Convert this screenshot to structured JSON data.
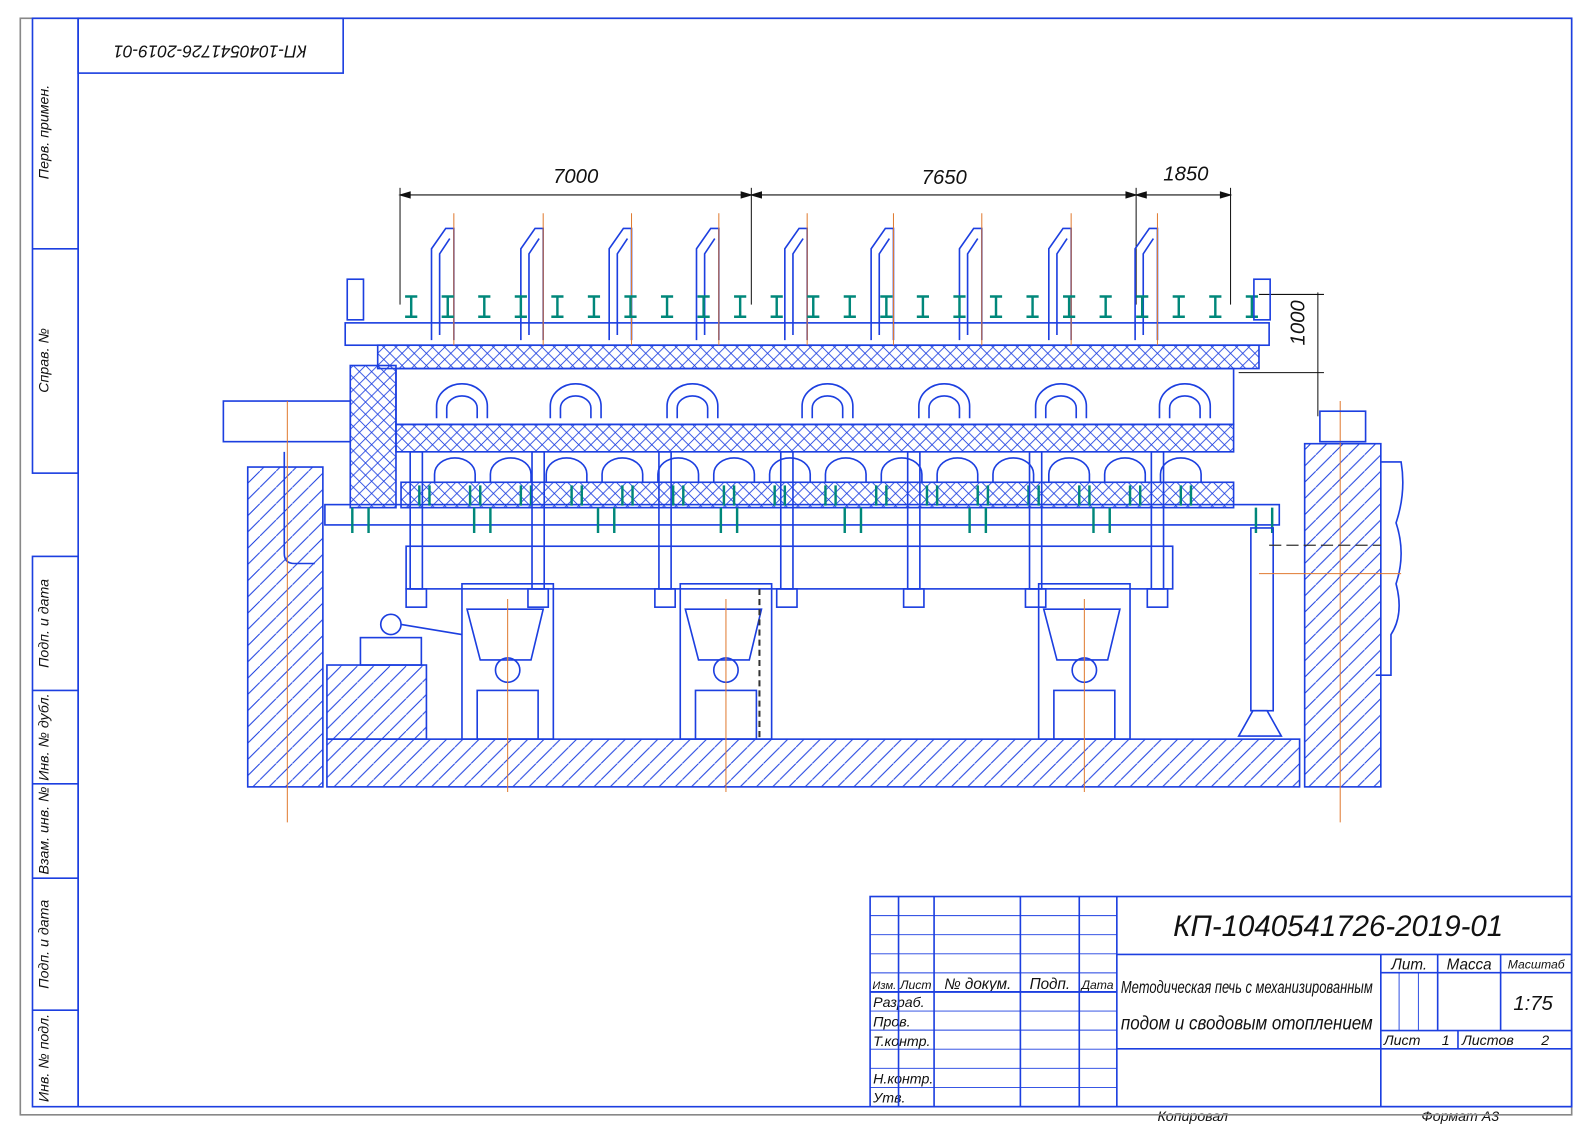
{
  "stamp_top": "КП-1040541726-2019-01",
  "side_labels": [
    "Перв. примен.",
    "Справ. №",
    "Подп. и дата",
    "Инв. № дубл.",
    "Взам. инв. №",
    "Подп. и дата",
    "Инв. № подл."
  ],
  "dimensions": [
    "7000",
    "7650",
    "1850",
    "1000"
  ],
  "title_block": {
    "designation": "КП-1040541726-2019-01",
    "name": [
      "Методическая печь с механизированным",
      "подом и сводовым отоплением"
    ],
    "header": [
      "Изм.",
      "Лист",
      "№ докум.",
      "Подп.",
      "Дата"
    ],
    "roles": [
      "Разраб.",
      "Пров.",
      "Т.контр.",
      "Н.контр.",
      "Утв."
    ],
    "lit": "Лит.",
    "mass": "Масса",
    "scale_label": "Масштаб",
    "scale": "1:75",
    "sheet_label": "Лист",
    "sheet": "1",
    "sheets_label": "Листов",
    "sheets": "2"
  },
  "footer": {
    "copied": "Копировал",
    "format": "Формат А3"
  }
}
